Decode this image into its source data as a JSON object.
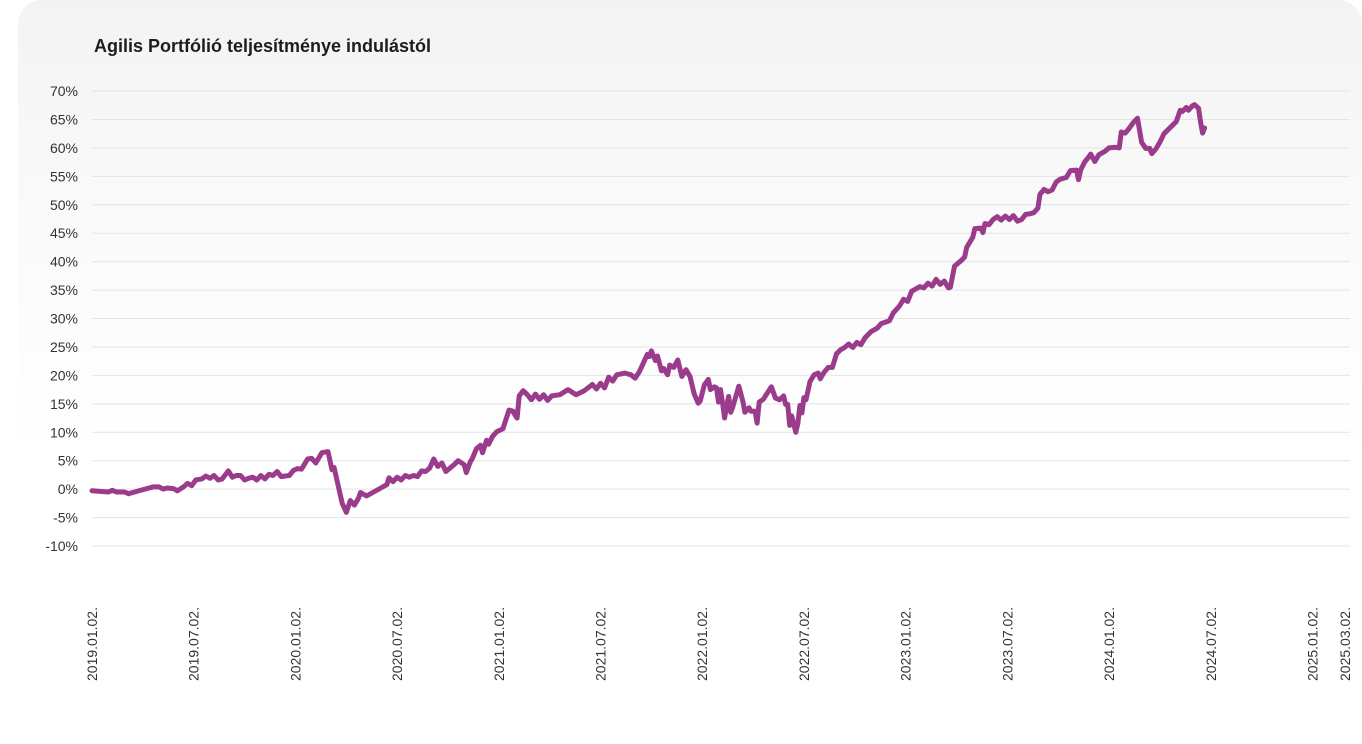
{
  "chart_data": {
    "type": "line",
    "title": "Agilis Portfólió teljesítménye indulástól",
    "xlabel": "",
    "ylabel": "",
    "ylim": [
      -10,
      70
    ],
    "y_ticks": [
      70,
      65,
      60,
      55,
      50,
      45,
      40,
      35,
      30,
      25,
      20,
      15,
      10,
      5,
      0,
      -5,
      -10
    ],
    "y_tick_suffix": "%",
    "grid": true,
    "legend": "none",
    "line_color": "#9b3b8b",
    "x_ticks": [
      {
        "label": "2019.01.02.",
        "t": 0.0
      },
      {
        "label": "2019.07.02.",
        "t": 0.5
      },
      {
        "label": "2020.01.02.",
        "t": 1.0
      },
      {
        "label": "2020.07.02.",
        "t": 1.5
      },
      {
        "label": "2021.01.02.",
        "t": 2.0
      },
      {
        "label": "2021.07.02.",
        "t": 2.5
      },
      {
        "label": "2022.01.02.",
        "t": 3.0
      },
      {
        "label": "2022.07.02.",
        "t": 3.5
      },
      {
        "label": "2023.01.02.",
        "t": 4.0
      },
      {
        "label": "2023.07.02.",
        "t": 4.5
      },
      {
        "label": "2024.01.02.",
        "t": 5.0
      },
      {
        "label": "2024.07.02.",
        "t": 5.5
      },
      {
        "label": "2025.01.02.",
        "t": 6.0
      },
      {
        "label": "2025.03.02.",
        "t": 6.16
      }
    ],
    "series": [
      {
        "name": "",
        "points": [
          [
            0.0,
            -0.3
          ],
          [
            0.04,
            -0.4
          ],
          [
            0.08,
            -0.5
          ],
          [
            0.1,
            -0.2
          ],
          [
            0.12,
            -0.5
          ],
          [
            0.16,
            -0.5
          ],
          [
            0.18,
            -0.8
          ],
          [
            0.22,
            -0.4
          ],
          [
            0.26,
            0.0
          ],
          [
            0.3,
            0.4
          ],
          [
            0.33,
            0.4
          ],
          [
            0.35,
            0.0
          ],
          [
            0.37,
            0.2
          ],
          [
            0.4,
            0.1
          ],
          [
            0.42,
            -0.3
          ],
          [
            0.45,
            0.4
          ],
          [
            0.47,
            1.0
          ],
          [
            0.49,
            0.6
          ],
          [
            0.51,
            1.6
          ],
          [
            0.54,
            1.8
          ],
          [
            0.56,
            2.3
          ],
          [
            0.58,
            1.9
          ],
          [
            0.6,
            2.4
          ],
          [
            0.62,
            1.6
          ],
          [
            0.64,
            1.8
          ],
          [
            0.67,
            3.2
          ],
          [
            0.69,
            2.1
          ],
          [
            0.71,
            2.4
          ],
          [
            0.73,
            2.4
          ],
          [
            0.75,
            1.6
          ],
          [
            0.77,
            1.9
          ],
          [
            0.79,
            2.1
          ],
          [
            0.81,
            1.6
          ],
          [
            0.83,
            2.4
          ],
          [
            0.85,
            1.8
          ],
          [
            0.87,
            2.6
          ],
          [
            0.89,
            2.4
          ],
          [
            0.91,
            3.1
          ],
          [
            0.93,
            2.2
          ],
          [
            0.95,
            2.3
          ],
          [
            0.97,
            2.4
          ],
          [
            0.99,
            3.3
          ],
          [
            1.01,
            3.6
          ],
          [
            1.03,
            3.5
          ],
          [
            1.06,
            5.3
          ],
          [
            1.08,
            5.4
          ],
          [
            1.1,
            4.6
          ],
          [
            1.13,
            6.4
          ],
          [
            1.16,
            6.6
          ],
          [
            1.18,
            3.4
          ],
          [
            1.19,
            3.8
          ],
          [
            1.23,
            -2.5
          ],
          [
            1.25,
            -4.1
          ],
          [
            1.27,
            -2.0
          ],
          [
            1.29,
            -2.8
          ],
          [
            1.31,
            -1.6
          ],
          [
            1.32,
            -0.6
          ],
          [
            1.33,
            -0.8
          ],
          [
            1.35,
            -1.2
          ],
          [
            1.38,
            -0.6
          ],
          [
            1.42,
            0.2
          ],
          [
            1.45,
            0.8
          ],
          [
            1.46,
            2.0
          ],
          [
            1.48,
            1.3
          ],
          [
            1.5,
            2.1
          ],
          [
            1.52,
            1.6
          ],
          [
            1.54,
            2.4
          ],
          [
            1.56,
            2.1
          ],
          [
            1.58,
            2.4
          ],
          [
            1.6,
            2.2
          ],
          [
            1.62,
            3.2
          ],
          [
            1.64,
            3.1
          ],
          [
            1.66,
            3.7
          ],
          [
            1.68,
            5.3
          ],
          [
            1.7,
            4.0
          ],
          [
            1.72,
            4.6
          ],
          [
            1.74,
            3.1
          ],
          [
            1.78,
            4.3
          ],
          [
            1.8,
            5.0
          ],
          [
            1.83,
            4.3
          ],
          [
            1.84,
            2.9
          ],
          [
            1.86,
            4.8
          ],
          [
            1.87,
            5.4
          ],
          [
            1.89,
            7.1
          ],
          [
            1.91,
            7.7
          ],
          [
            1.92,
            6.4
          ],
          [
            1.94,
            8.6
          ],
          [
            1.95,
            7.9
          ],
          [
            1.97,
            9.3
          ],
          [
            1.99,
            10.1
          ],
          [
            2.02,
            10.6
          ],
          [
            2.04,
            12.8
          ],
          [
            2.05,
            13.9
          ],
          [
            2.07,
            13.7
          ],
          [
            2.08,
            13.0
          ],
          [
            2.09,
            12.5
          ],
          [
            2.1,
            16.4
          ],
          [
            2.12,
            17.3
          ],
          [
            2.14,
            16.6
          ],
          [
            2.16,
            15.7
          ],
          [
            2.18,
            16.7
          ],
          [
            2.2,
            15.8
          ],
          [
            2.22,
            16.6
          ],
          [
            2.24,
            15.6
          ],
          [
            2.26,
            16.4
          ],
          [
            2.3,
            16.6
          ],
          [
            2.34,
            17.5
          ],
          [
            2.38,
            16.6
          ],
          [
            2.42,
            17.3
          ],
          [
            2.46,
            18.4
          ],
          [
            2.48,
            17.6
          ],
          [
            2.5,
            18.6
          ],
          [
            2.52,
            17.8
          ],
          [
            2.54,
            19.7
          ],
          [
            2.56,
            19.0
          ],
          [
            2.58,
            20.1
          ],
          [
            2.62,
            20.4
          ],
          [
            2.65,
            20.1
          ],
          [
            2.67,
            19.5
          ],
          [
            2.69,
            20.6
          ],
          [
            2.71,
            22.1
          ],
          [
            2.73,
            23.7
          ],
          [
            2.74,
            23.3
          ],
          [
            2.75,
            24.3
          ],
          [
            2.77,
            22.6
          ],
          [
            2.78,
            23.4
          ],
          [
            2.8,
            20.8
          ],
          [
            2.81,
            21.2
          ],
          [
            2.83,
            20.1
          ],
          [
            2.84,
            21.8
          ],
          [
            2.86,
            21.4
          ],
          [
            2.88,
            22.7
          ],
          [
            2.9,
            19.8
          ],
          [
            2.92,
            21.0
          ],
          [
            2.94,
            19.8
          ],
          [
            2.96,
            16.8
          ],
          [
            2.98,
            15.1
          ],
          [
            2.99,
            15.5
          ],
          [
            3.01,
            18.3
          ],
          [
            3.03,
            19.3
          ],
          [
            3.04,
            17.5
          ],
          [
            3.06,
            18.0
          ],
          [
            3.07,
            17.8
          ],
          [
            3.08,
            15.3
          ],
          [
            3.09,
            17.5
          ],
          [
            3.1,
            15.1
          ],
          [
            3.11,
            12.5
          ],
          [
            3.12,
            14.6
          ],
          [
            3.13,
            16.3
          ],
          [
            3.14,
            13.5
          ],
          [
            3.15,
            14.4
          ],
          [
            3.18,
            18.1
          ],
          [
            3.2,
            15.4
          ],
          [
            3.21,
            13.5
          ],
          [
            3.23,
            14.3
          ],
          [
            3.24,
            13.7
          ],
          [
            3.26,
            13.7
          ],
          [
            3.27,
            11.6
          ],
          [
            3.28,
            15.3
          ],
          [
            3.3,
            15.8
          ],
          [
            3.32,
            16.9
          ],
          [
            3.34,
            18.0
          ],
          [
            3.36,
            16.0
          ],
          [
            3.38,
            15.7
          ],
          [
            3.4,
            16.4
          ],
          [
            3.41,
            14.9
          ],
          [
            3.42,
            14.9
          ],
          [
            3.43,
            11.2
          ],
          [
            3.44,
            12.9
          ],
          [
            3.46,
            10.0
          ],
          [
            3.47,
            11.5
          ],
          [
            3.48,
            14.7
          ],
          [
            3.49,
            13.4
          ],
          [
            3.5,
            16.1
          ],
          [
            3.51,
            15.7
          ],
          [
            3.53,
            18.9
          ],
          [
            3.55,
            20.1
          ],
          [
            3.57,
            20.4
          ],
          [
            3.58,
            19.4
          ],
          [
            3.6,
            20.6
          ],
          [
            3.62,
            21.4
          ],
          [
            3.64,
            21.4
          ],
          [
            3.66,
            23.8
          ],
          [
            3.68,
            24.5
          ],
          [
            3.7,
            24.9
          ],
          [
            3.72,
            25.5
          ],
          [
            3.74,
            24.9
          ],
          [
            3.76,
            25.8
          ],
          [
            3.78,
            25.4
          ],
          [
            3.8,
            26.6
          ],
          [
            3.83,
            27.7
          ],
          [
            3.86,
            28.3
          ],
          [
            3.88,
            29.1
          ],
          [
            3.92,
            29.6
          ],
          [
            3.94,
            31.0
          ],
          [
            3.97,
            32.2
          ],
          [
            3.99,
            33.4
          ],
          [
            4.01,
            33.0
          ],
          [
            4.03,
            34.8
          ],
          [
            4.05,
            35.2
          ],
          [
            4.07,
            35.6
          ],
          [
            4.09,
            35.4
          ],
          [
            4.11,
            36.2
          ],
          [
            4.13,
            35.7
          ],
          [
            4.15,
            36.9
          ],
          [
            4.17,
            36.0
          ],
          [
            4.19,
            36.6
          ],
          [
            4.21,
            35.4
          ],
          [
            4.22,
            35.5
          ],
          [
            4.24,
            39.2
          ],
          [
            4.27,
            40.1
          ],
          [
            4.29,
            40.8
          ],
          [
            4.3,
            42.5
          ],
          [
            4.33,
            44.3
          ],
          [
            4.34,
            45.8
          ],
          [
            4.37,
            45.9
          ],
          [
            4.38,
            45.1
          ],
          [
            4.39,
            46.7
          ],
          [
            4.41,
            46.5
          ],
          [
            4.43,
            47.4
          ],
          [
            4.45,
            47.9
          ],
          [
            4.47,
            47.3
          ],
          [
            4.49,
            48.0
          ],
          [
            4.51,
            47.4
          ],
          [
            4.53,
            48.1
          ],
          [
            4.55,
            47.1
          ],
          [
            4.57,
            47.4
          ],
          [
            4.59,
            48.3
          ],
          [
            4.61,
            48.4
          ],
          [
            4.63,
            48.6
          ],
          [
            4.65,
            49.4
          ],
          [
            4.66,
            51.8
          ],
          [
            4.68,
            52.7
          ],
          [
            4.7,
            52.3
          ],
          [
            4.72,
            52.6
          ],
          [
            4.74,
            54.0
          ],
          [
            4.76,
            54.5
          ],
          [
            4.79,
            54.8
          ],
          [
            4.81,
            56.0
          ],
          [
            4.84,
            56.1
          ],
          [
            4.85,
            54.4
          ],
          [
            4.86,
            56.1
          ],
          [
            4.88,
            57.5
          ],
          [
            4.9,
            58.4
          ],
          [
            4.91,
            58.9
          ],
          [
            4.93,
            57.6
          ],
          [
            4.95,
            58.8
          ],
          [
            4.98,
            59.4
          ],
          [
            5.0,
            60.0
          ],
          [
            5.03,
            60.1
          ],
          [
            5.05,
            60.0
          ],
          [
            5.06,
            62.8
          ],
          [
            5.08,
            62.6
          ],
          [
            5.1,
            63.5
          ],
          [
            5.12,
            64.5
          ],
          [
            5.14,
            65.2
          ],
          [
            5.16,
            61.0
          ],
          [
            5.18,
            59.9
          ],
          [
            5.2,
            59.9
          ],
          [
            5.21,
            59.0
          ],
          [
            5.23,
            59.8
          ],
          [
            5.25,
            61.0
          ],
          [
            5.27,
            62.5
          ],
          [
            5.29,
            63.2
          ],
          [
            5.31,
            63.9
          ],
          [
            5.33,
            64.6
          ],
          [
            5.35,
            66.6
          ],
          [
            5.36,
            66.4
          ],
          [
            5.38,
            67.1
          ],
          [
            5.39,
            66.6
          ],
          [
            5.41,
            67.4
          ],
          [
            5.42,
            67.6
          ],
          [
            5.44,
            67.0
          ],
          [
            5.45,
            64.5
          ],
          [
            5.46,
            62.6
          ],
          [
            5.47,
            63.5
          ]
        ]
      }
    ]
  }
}
